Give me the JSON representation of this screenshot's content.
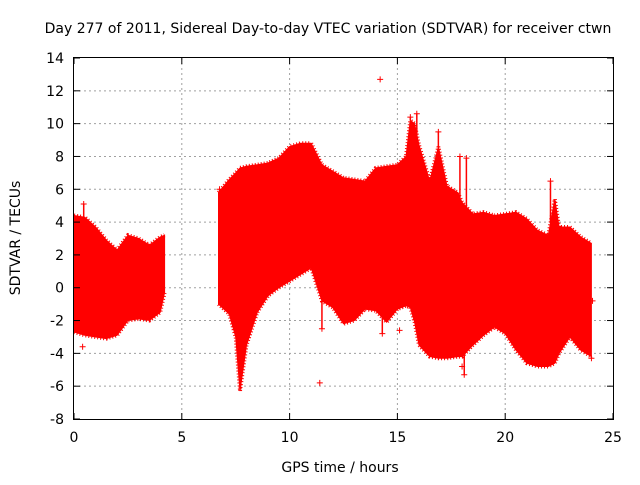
{
  "chart_data": {
    "type": "scatter",
    "title": "Day 277 of 2011, Sidereal Day-to-day VTEC variation (SDTVAR) for receiver ctwn",
    "xlabel": "GPS time / hours",
    "ylabel": "SDTVAR / TECUs",
    "xlim": [
      0,
      25
    ],
    "ylim": [
      -8,
      14
    ],
    "xticks": [
      0,
      5,
      10,
      15,
      20,
      25
    ],
    "yticks": [
      -8,
      -6,
      -4,
      -2,
      0,
      2,
      4,
      6,
      8,
      10,
      12,
      14
    ],
    "grid": true,
    "marker": "+",
    "color": "#ff0000",
    "series": [
      {
        "name": "SDTVAR",
        "band_segments": [
          {
            "x": [
              0.0,
              0.5,
              1.0,
              1.5,
              2.0,
              2.5,
              3.0,
              3.5,
              4.0,
              4.2
            ],
            "upper": [
              4.4,
              4.3,
              3.7,
              2.9,
              2.3,
              3.2,
              3.0,
              2.6,
              3.1,
              3.2
            ],
            "lower": [
              -2.7,
              -2.9,
              -3.0,
              -3.1,
              -2.9,
              -2.0,
              -1.9,
              -2.0,
              -1.5,
              -0.3
            ]
          },
          {
            "x": [
              6.7,
              7.2,
              7.5,
              7.7,
              8.0,
              8.5,
              9.0,
              9.5,
              10.0,
              10.5,
              11.0,
              11.5,
              12.0,
              12.5,
              13.0,
              13.5,
              14.0,
              14.5,
              15.0,
              15.4,
              15.6,
              15.8,
              16.0,
              16.5,
              16.9,
              17.3,
              17.8,
              18.0,
              18.5,
              19.0,
              19.5,
              20.0,
              20.5,
              21.0,
              21.5,
              22.0,
              22.3,
              22.5,
              23.0,
              23.5,
              24.0
            ],
            "upper": [
              5.8,
              6.6,
              7.0,
              7.3,
              7.4,
              7.5,
              7.6,
              7.9,
              8.6,
              8.8,
              8.8,
              7.5,
              7.1,
              6.7,
              6.6,
              6.5,
              7.3,
              7.4,
              7.5,
              8.0,
              10.2,
              10.0,
              8.7,
              6.5,
              8.6,
              6.2,
              5.8,
              5.2,
              4.5,
              4.6,
              4.4,
              4.5,
              4.6,
              4.2,
              3.5,
              3.2,
              5.4,
              3.7,
              3.7,
              3.1,
              2.7
            ],
            "lower": [
              -1.0,
              -1.6,
              -3.0,
              -6.3,
              -3.5,
              -1.5,
              -0.5,
              0.0,
              0.4,
              0.8,
              1.2,
              -0.8,
              -1.2,
              -2.2,
              -2.0,
              -1.3,
              -1.4,
              -2.1,
              -1.3,
              -1.1,
              -1.2,
              -2.1,
              -3.5,
              -4.2,
              -4.3,
              -4.3,
              -4.2,
              -4.2,
              -3.5,
              -2.9,
              -2.4,
              -2.8,
              -3.8,
              -4.6,
              -4.8,
              -4.8,
              -4.6,
              -4.0,
              -3.0,
              -3.8,
              -4.2
            ]
          }
        ],
        "spikes": [
          {
            "x": 0.45,
            "y": 5.1
          },
          {
            "x": 6.75,
            "y": 6.0
          },
          {
            "x": 11.5,
            "y": -2.5
          },
          {
            "x": 14.3,
            "y": -2.8
          },
          {
            "x": 15.6,
            "y": 10.4
          },
          {
            "x": 15.9,
            "y": 10.6
          },
          {
            "x": 16.9,
            "y": 9.5
          },
          {
            "x": 17.9,
            "y": 8.0
          },
          {
            "x": 18.2,
            "y": 7.9
          },
          {
            "x": 18.1,
            "y": -5.3
          },
          {
            "x": 22.1,
            "y": 6.5
          },
          {
            "x": 24.0,
            "y": -4.3
          }
        ],
        "outliers": [
          {
            "x": 0.4,
            "y": -3.6
          },
          {
            "x": 14.2,
            "y": 12.7
          },
          {
            "x": 11.4,
            "y": -5.8
          },
          {
            "x": 15.1,
            "y": -2.6
          },
          {
            "x": 18.0,
            "y": -4.8
          },
          {
            "x": 24.05,
            "y": -0.8
          }
        ]
      }
    ]
  }
}
